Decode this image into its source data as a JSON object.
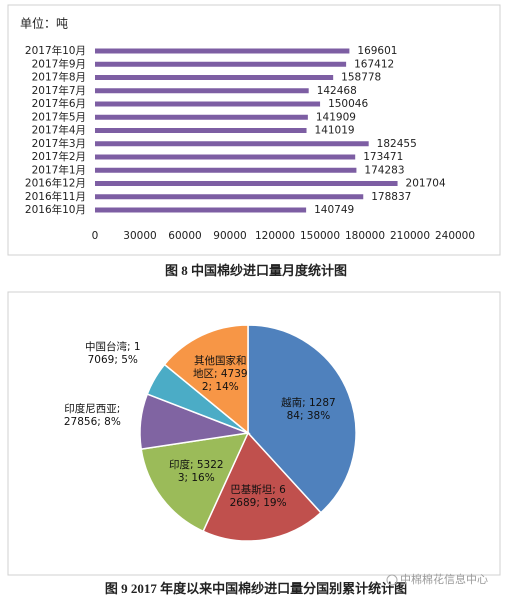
{
  "chart_data": [
    {
      "type": "hbar",
      "unit_label": "单位：吨",
      "caption": "图 8  中国棉纱进口量月度统计图",
      "categories": [
        "2017年10月",
        "2017年9月",
        "2017年8月",
        "2017年7月",
        "2017年6月",
        "2017年5月",
        "2017年4月",
        "2017年3月",
        "2017年2月",
        "2017年1月",
        "2016年12月",
        "2016年11月",
        "2016年10月"
      ],
      "values": [
        169601,
        167412,
        158778,
        142468,
        150046,
        141909,
        141019,
        182455,
        173471,
        174283,
        201704,
        178837,
        140749
      ],
      "color": "#7d5ea3",
      "xlim": [
        0,
        240000
      ],
      "xticks": [
        0,
        30000,
        60000,
        90000,
        120000,
        150000,
        180000,
        210000,
        240000
      ],
      "grid": false
    },
    {
      "type": "pie",
      "caption": "图 9 2017 年度以来中国棉纱进口量分国别累计统计图",
      "values": [
        128784,
        62689,
        53223,
        27856,
        17069,
        47392
      ],
      "value_labels": [
        "越南; 128784; 38%",
        "巴基斯坦; 62689; 19%",
        "印度; 53223; 16%",
        "印度尼西亚; 27856; 8%",
        "中国台湾; 17069; 5%",
        "其他国家和地区; 47392; 14%"
      ],
      "colors": [
        "#4f81bd",
        "#c0504d",
        "#9bbb59",
        "#8064a2",
        "#4bacc6",
        "#f79646"
      ]
    }
  ],
  "watermark": "中棉棉花信息中心"
}
